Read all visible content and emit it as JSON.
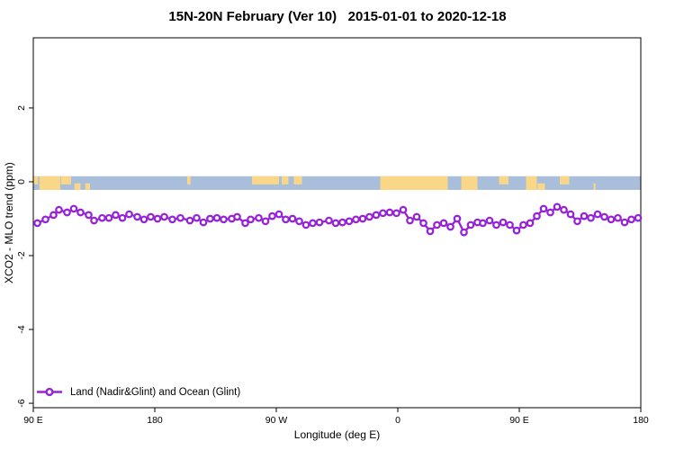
{
  "figure": {
    "title": "15N-20N February (Ver 10)   2015-01-01 to 2020-12-18"
  },
  "chart_data": {
    "type": "line",
    "title": "15N-20N February (Ver 10)   2015-01-01 to 2020-12-18",
    "xlabel": "Longitude (deg E)",
    "ylabel": "XCO2 - MLO trend (ppm)",
    "xlim": [
      90,
      540
    ],
    "ylim": [
      -6.12,
      3.9
    ],
    "grid": false,
    "x_ticks": [
      {
        "deg": 90,
        "label": "90 E"
      },
      {
        "deg": 180,
        "label": "180"
      },
      {
        "deg": 270,
        "label": "90 W"
      },
      {
        "deg": 360,
        "label": "0"
      },
      {
        "deg": 450,
        "label": "90 E"
      },
      {
        "deg": 540,
        "label": "180"
      }
    ],
    "y_ticks": [
      {
        "value": 2,
        "label": "2"
      },
      {
        "value": 0,
        "label": "0"
      },
      {
        "value": -2,
        "label": "-2"
      },
      {
        "value": -4,
        "label": "-4"
      },
      {
        "value": -6,
        "label": "-6"
      }
    ],
    "colors": {
      "series": "#9623d6",
      "marker_fill": "#ffffff",
      "ocean_band": "#a9bedb",
      "land_band": "#f9d688",
      "axis": "#000000"
    },
    "land_ocean_band": {
      "y_top": 0.15,
      "y_bottom": -0.22,
      "land_patches": [
        {
          "start": 90,
          "end": 93.5,
          "cover": "top"
        },
        {
          "start": 94.5,
          "end": 110,
          "cover": "full"
        },
        {
          "start": 110.5,
          "end": 118,
          "cover": "top"
        },
        {
          "start": 120.5,
          "end": 125,
          "cover": "bottom"
        },
        {
          "start": 128.5,
          "end": 132,
          "cover": "bottom"
        },
        {
          "start": 204,
          "end": 206.5,
          "cover": "top"
        },
        {
          "start": 252,
          "end": 272,
          "cover": "top"
        },
        {
          "start": 274,
          "end": 279,
          "cover": "top"
        },
        {
          "start": 283,
          "end": 289,
          "cover": "top"
        },
        {
          "start": 347,
          "end": 397,
          "cover": "full"
        },
        {
          "start": 407,
          "end": 419,
          "cover": "full"
        },
        {
          "start": 435,
          "end": 442,
          "cover": "top"
        },
        {
          "start": 455,
          "end": 463,
          "cover": "full"
        },
        {
          "start": 463.5,
          "end": 469,
          "cover": "bottom"
        },
        {
          "start": 480,
          "end": 487,
          "cover": "top"
        },
        {
          "start": 505,
          "end": 506.5,
          "cover": "bottom"
        }
      ]
    },
    "legend": {
      "position": "bottom-left",
      "label": "Land (Nadir&Glint) and Ocean (Glint)"
    },
    "series": [
      {
        "name": "Land (Nadir&Glint) and Ocean (Glint)",
        "x_deg": [
          93,
          99,
          105,
          109,
          115,
          120,
          125,
          131,
          135,
          141,
          146,
          151,
          156,
          161,
          167,
          172,
          177,
          182,
          187,
          193,
          199,
          206,
          211,
          216,
          221,
          226,
          231,
          237,
          241,
          247,
          251,
          257,
          262,
          267,
          272,
          277,
          282,
          287,
          292,
          297,
          302,
          309,
          314,
          319,
          324,
          329,
          334,
          339,
          344,
          349,
          354,
          359,
          364,
          369,
          374,
          379,
          384,
          389,
          394,
          399,
          404,
          409,
          414,
          419,
          423,
          428,
          433,
          438,
          443,
          448,
          453,
          458,
          463,
          468,
          473,
          478,
          483,
          488,
          493,
          498,
          503,
          508,
          513,
          518,
          523,
          528,
          533,
          538
        ],
        "values": [
          -1.12,
          -1.02,
          -0.9,
          -0.76,
          -0.83,
          -0.73,
          -0.83,
          -0.9,
          -1.05,
          -0.98,
          -0.98,
          -0.9,
          -0.98,
          -0.88,
          -0.95,
          -1.02,
          -0.95,
          -1.0,
          -0.95,
          -1.02,
          -0.98,
          -1.05,
          -0.98,
          -1.1,
          -1.0,
          -0.98,
          -1.02,
          -1.0,
          -0.95,
          -1.12,
          -1.02,
          -0.98,
          -1.07,
          -0.93,
          -0.88,
          -1.02,
          -1.0,
          -1.07,
          -1.17,
          -1.12,
          -1.1,
          -1.05,
          -1.12,
          -1.1,
          -1.07,
          -1.02,
          -1.0,
          -0.95,
          -0.9,
          -0.85,
          -0.83,
          -0.85,
          -0.76,
          -1.05,
          -0.95,
          -1.12,
          -1.34,
          -1.17,
          -1.12,
          -1.22,
          -1.0,
          -1.37,
          -1.17,
          -1.1,
          -1.12,
          -1.05,
          -1.17,
          -1.1,
          -1.17,
          -1.32,
          -1.17,
          -1.12,
          -0.93,
          -0.73,
          -0.83,
          -0.68,
          -0.76,
          -0.88,
          -1.07,
          -0.93,
          -0.98,
          -0.88,
          -0.95,
          -1.02,
          -0.98,
          -1.1,
          -1.02,
          -0.98
        ]
      }
    ]
  }
}
